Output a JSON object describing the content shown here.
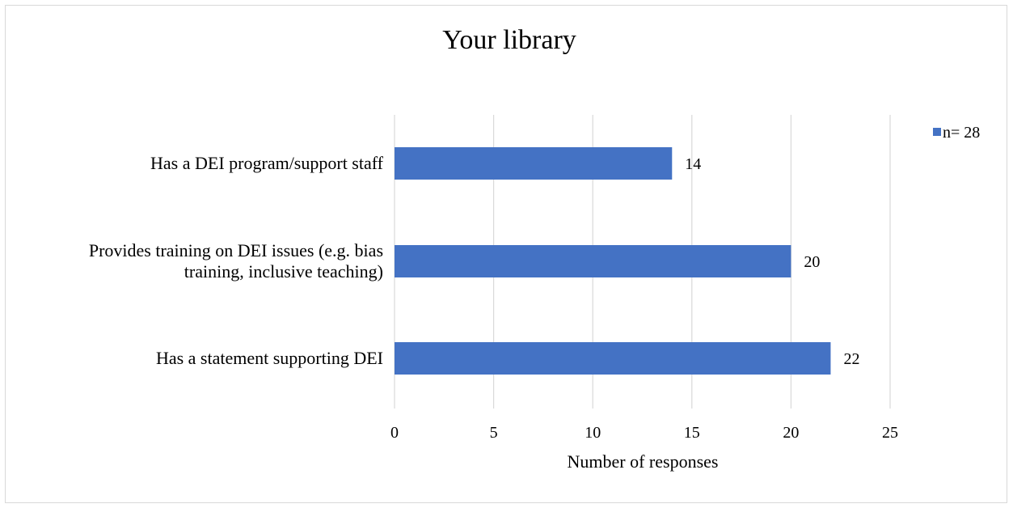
{
  "chart_data": {
    "type": "bar",
    "orientation": "horizontal",
    "title": "Your library",
    "xlabel": "Number of responses",
    "ylabel": "",
    "categories": [
      [
        "Has a DEI program/support staff"
      ],
      [
        "Provides training on DEI issues (e.g. bias",
        "training, inclusive teaching)"
      ],
      [
        "Has a statement supporting DEI"
      ]
    ],
    "series": [
      {
        "name": "n= 28",
        "color": "#4472c4",
        "values": [
          14,
          20,
          22
        ]
      }
    ],
    "xlim": [
      0,
      25
    ],
    "xticks": [
      "0",
      "5",
      "10",
      "15",
      "20",
      "25"
    ],
    "data_labels": [
      "14",
      "20",
      "22"
    ],
    "grid": "vertical",
    "legend_position": "top-right"
  }
}
